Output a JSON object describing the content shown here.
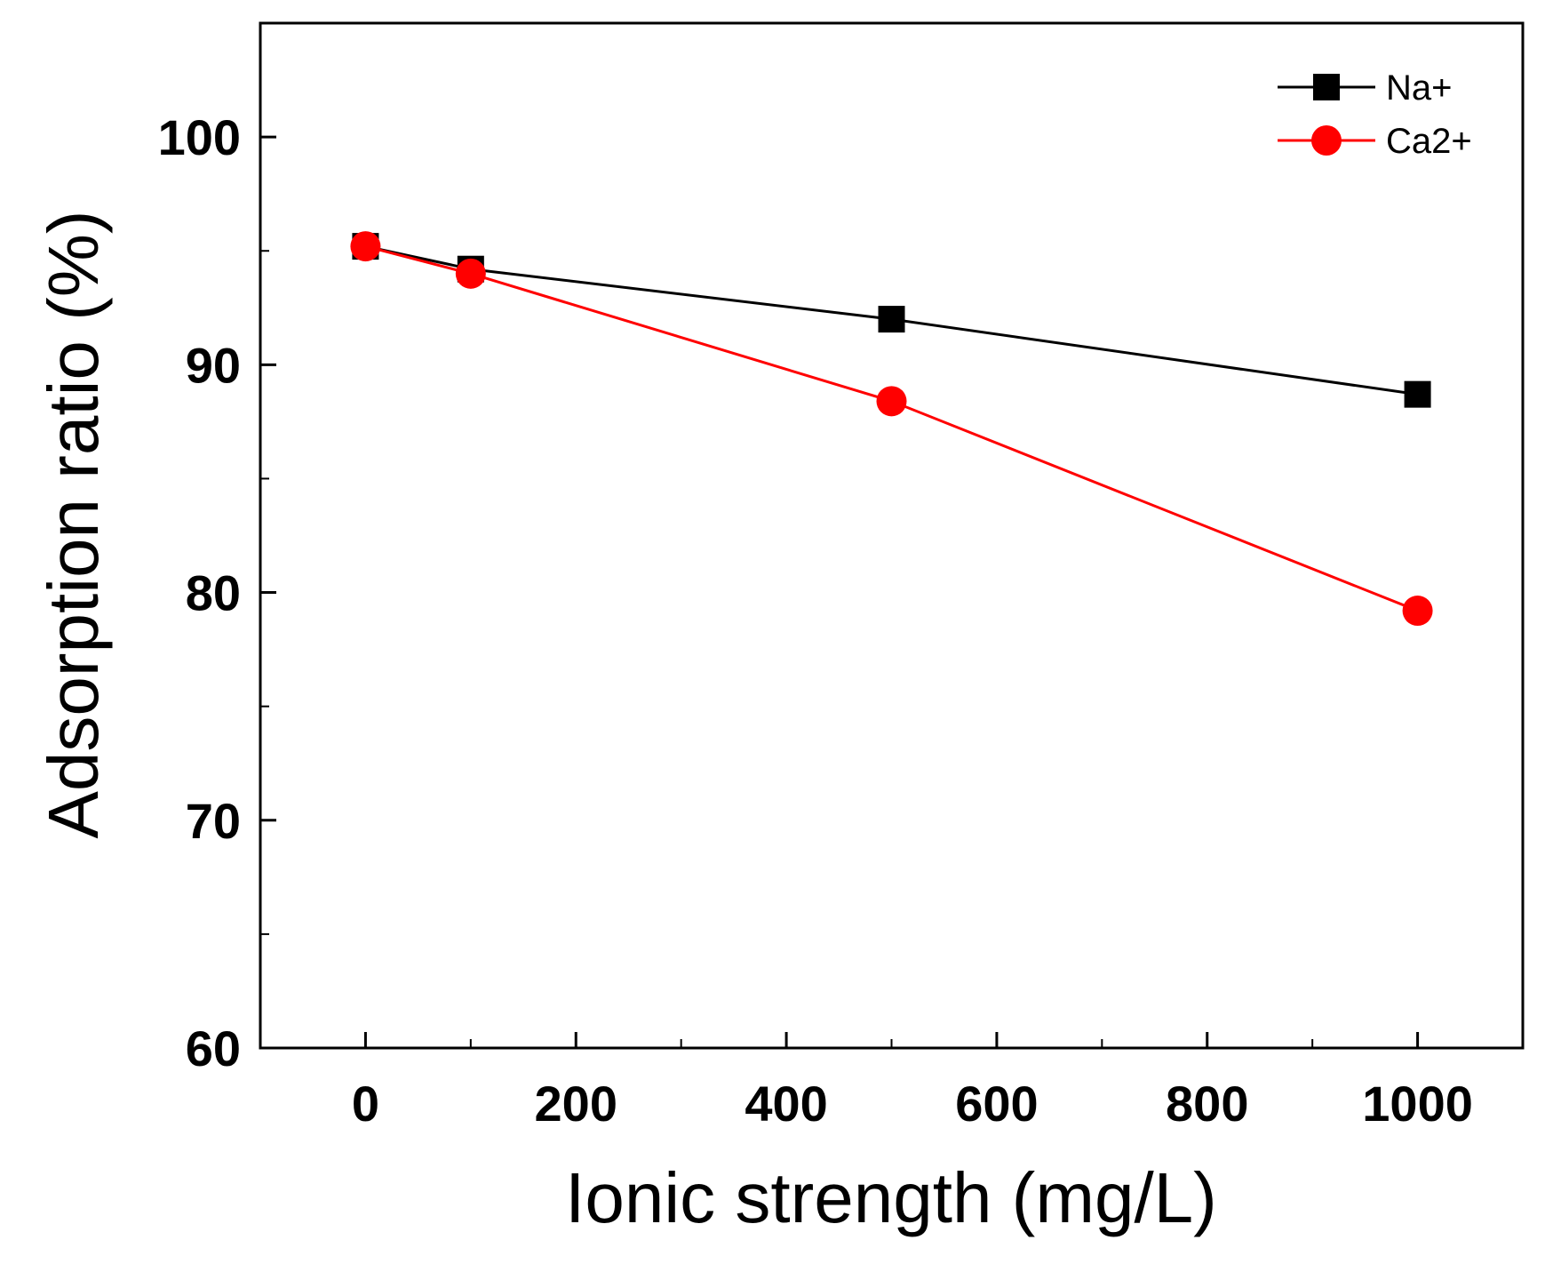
{
  "chart_data": {
    "type": "line",
    "title": "",
    "xlabel": "Ionic strength (mg/L)",
    "ylabel": "Adsorption ratio (%)",
    "xlim": [
      -100,
      1100
    ],
    "ylim": [
      60,
      105
    ],
    "xticks": [
      0,
      200,
      400,
      600,
      800,
      1000
    ],
    "yticks": [
      60,
      70,
      80,
      90,
      100
    ],
    "x": [
      0,
      100,
      500,
      1000
    ],
    "series": [
      {
        "name": "Na+",
        "color": "#000000",
        "marker": "square",
        "values": [
          95.2,
          94.2,
          92.0,
          88.7
        ]
      },
      {
        "name": "Ca2+",
        "color": "#ff0000",
        "marker": "circle",
        "values": [
          95.2,
          94.0,
          88.4,
          79.2
        ]
      }
    ],
    "legend_position": "top-right",
    "grid": false
  }
}
